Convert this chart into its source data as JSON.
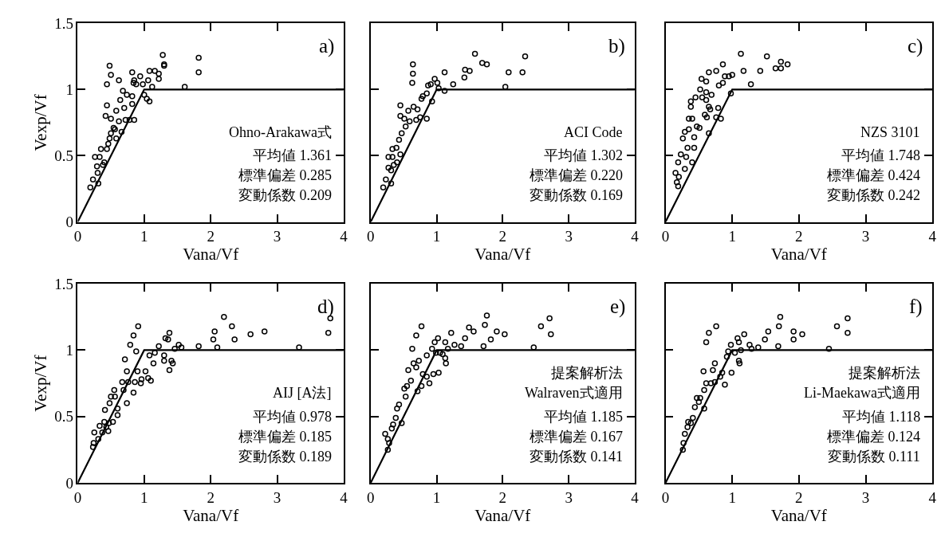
{
  "chart_data": [
    {
      "type": "scatter",
      "xlabel": "Vana/Vf",
      "ylabel": "Vexp/Vf",
      "xlim": [
        0,
        4
      ],
      "ylim": [
        0,
        1.5
      ],
      "xticks": [
        0,
        1,
        2,
        3,
        4
      ],
      "yticks": [
        0,
        0.5,
        1,
        1.5
      ],
      "annotations": [
        "a)",
        "Ohno-Arakawa式",
        "平均値 1.361",
        "標準偏差 0.285",
        "変動係数 0.209"
      ],
      "series": [
        {
          "type": "scatter",
          "color": "#000000",
          "marker": "circle",
          "x": [
            0.19,
            0.23,
            0.26,
            0.33,
            0.29,
            0.3,
            0.31,
            0.38,
            0.4,
            0.35,
            0.44,
            0.46,
            0.48,
            0.5,
            0.44,
            0.42,
            0.44,
            0.48,
            0.5,
            0.5,
            0.54,
            0.56,
            0.62,
            0.58,
            0.62,
            0.64,
            0.58,
            0.66,
            0.68,
            0.7,
            0.72,
            0.74,
            0.78,
            0.82,
            0.84,
            0.82,
            0.82,
            0.85,
            0.85,
            0.88,
            0.94,
            0.98,
            1.0,
            1.04,
            1.06,
            1.08,
            1.08,
            1.12,
            1.16,
            1.22,
            1.22,
            1.28,
            1.3,
            1.3,
            1.61,
            1.82,
            1.82
          ],
          "values": [
            0.26,
            0.32,
            0.49,
            0.49,
            0.42,
            0.37,
            0.29,
            0.43,
            0.45,
            0.55,
            0.55,
            0.59,
            0.63,
            0.67,
            0.88,
            0.8,
            1.04,
            1.18,
            1.11,
            0.78,
            0.71,
            0.7,
            1.07,
            0.84,
            0.76,
            0.92,
            0.63,
            0.68,
            0.99,
            0.86,
            0.77,
            0.96,
            0.77,
            1.13,
            1.05,
            0.95,
            0.89,
            0.77,
            1.07,
            1.04,
            1.1,
            1.04,
            0.96,
            0.93,
            1.07,
            0.91,
            1.14,
            1.02,
            1.14,
            1.12,
            1.08,
            1.26,
            1.19,
            1.18,
            1.02,
            1.24,
            1.13
          ]
        },
        {
          "type": "line",
          "color": "#000000",
          "line_style": "solid",
          "x": [
            0,
            1,
            4
          ],
          "values": [
            0,
            1,
            1
          ]
        }
      ]
    },
    {
      "type": "scatter",
      "xlabel": "Vana/Vf",
      "xlim": [
        0,
        4
      ],
      "ylim": [
        0,
        1.5
      ],
      "xticks": [
        0,
        1,
        2,
        3,
        4
      ],
      "yticks": [
        0,
        0.5,
        1,
        1.5
      ],
      "tick_labels": "x",
      "annotations": [
        "b)",
        "ACI Code",
        "平均値 1.302",
        "標準偏差 0.220",
        "変動係数 0.169"
      ],
      "series": [
        {
          "type": "scatter",
          "color": "#000000",
          "marker": "circle",
          "x": [
            0.19,
            0.23,
            0.31,
            0.27,
            0.33,
            0.27,
            0.31,
            0.35,
            0.4,
            0.33,
            0.39,
            0.45,
            0.43,
            0.47,
            0.45,
            0.51,
            0.45,
            0.53,
            0.57,
            0.59,
            0.63,
            0.64,
            0.64,
            0.65,
            0.71,
            0.69,
            0.75,
            0.77,
            0.79,
            0.85,
            0.85,
            0.87,
            0.91,
            0.93,
            0.97,
            1.01,
            1.03,
            1.12,
            1.12,
            1.25,
            1.42,
            1.43,
            1.5,
            1.58,
            1.69,
            1.76,
            2.04,
            2.09,
            2.3,
            2.34
          ],
          "values": [
            0.26,
            0.32,
            0.29,
            0.49,
            0.49,
            0.41,
            0.39,
            0.43,
            0.45,
            0.55,
            0.56,
            0.51,
            0.62,
            0.67,
            0.8,
            0.78,
            0.88,
            0.72,
            0.84,
            0.76,
            1.05,
            1.12,
            1.19,
            0.87,
            0.85,
            0.77,
            0.79,
            0.93,
            0.95,
            0.97,
            0.78,
            1.03,
            1.04,
            0.91,
            1.08,
            1.05,
            1.01,
            0.99,
            1.13,
            1.04,
            1.09,
            1.15,
            1.14,
            1.27,
            1.2,
            1.19,
            1.02,
            1.13,
            1.13,
            1.25
          ]
        },
        {
          "type": "line",
          "color": "#000000",
          "line_style": "solid",
          "x": [
            0,
            1,
            4
          ],
          "values": [
            0,
            1,
            1
          ]
        }
      ]
    },
    {
      "type": "scatter",
      "xlabel": "Vana/Vf",
      "xlim": [
        0,
        4
      ],
      "ylim": [
        0,
        1.5
      ],
      "xticks": [
        0,
        1,
        2,
        3,
        4
      ],
      "yticks": [
        0,
        0.5,
        1,
        1.5
      ],
      "tick_labels": "x",
      "annotations": [
        "c)",
        "NZS 3101",
        "平均値 1.748",
        "標準偏差 0.424",
        "変動係数 0.242"
      ],
      "series": [
        {
          "type": "scatter",
          "color": "#000000",
          "marker": "circle",
          "x": [
            0.19,
            0.17,
            0.2,
            0.15,
            0.19,
            0.23,
            0.29,
            0.31,
            0.33,
            0.4,
            0.26,
            0.29,
            0.35,
            0.43,
            0.43,
            0.47,
            0.51,
            0.35,
            0.4,
            0.38,
            0.38,
            0.45,
            0.52,
            0.54,
            0.61,
            0.61,
            0.55,
            0.61,
            0.65,
            0.65,
            0.67,
            0.59,
            0.62,
            0.65,
            0.69,
            0.76,
            0.76,
            0.79,
            0.83,
            0.8,
            0.86,
            0.86,
            0.89,
            0.95,
            1.0,
            0.98,
            1.13,
            1.17,
            1.28,
            1.42,
            1.52,
            1.65,
            1.73,
            1.73,
            1.83
          ],
          "values": [
            0.27,
            0.3,
            0.34,
            0.37,
            0.45,
            0.51,
            0.4,
            0.49,
            0.56,
            0.45,
            0.63,
            0.68,
            0.7,
            0.56,
            0.64,
            0.72,
            0.71,
            0.78,
            0.78,
            0.87,
            0.91,
            0.94,
            1.0,
            1.08,
            1.06,
            0.98,
            0.94,
            0.92,
            1.13,
            0.87,
            0.85,
            0.81,
            0.79,
            0.67,
            0.96,
            1.14,
            0.79,
            0.86,
            0.78,
            1.03,
            1.05,
            1.19,
            1.1,
            1.1,
            1.11,
            0.97,
            1.27,
            1.14,
            1.04,
            1.14,
            1.25,
            1.16,
            1.16,
            1.21,
            1.19
          ]
        },
        {
          "type": "line",
          "color": "#000000",
          "line_style": "solid",
          "x": [
            0,
            1,
            4
          ],
          "values": [
            0,
            1,
            1
          ]
        }
      ]
    },
    {
      "type": "scatter",
      "xlabel": "Vana/Vf",
      "ylabel": "Vexp/Vf",
      "xlim": [
        0,
        4
      ],
      "ylim": [
        0,
        1.5
      ],
      "xticks": [
        0,
        1,
        2,
        3,
        4
      ],
      "yticks": [
        0,
        0.5,
        1,
        1.5
      ],
      "annotations": [
        "d)",
        "AIJ [A法]",
        "平均値 0.978",
        "標準偏差 0.185",
        "変動係数 0.189"
      ],
      "series": [
        {
          "type": "scatter",
          "color": "#000000",
          "marker": "circle",
          "x": [
            0.23,
            0.24,
            0.25,
            0.31,
            0.33,
            0.37,
            0.4,
            0.41,
            0.43,
            0.47,
            0.46,
            0.48,
            0.5,
            0.55,
            0.53,
            0.56,
            0.6,
            0.6,
            0.67,
            0.69,
            0.71,
            0.74,
            0.74,
            0.76,
            0.79,
            0.84,
            0.84,
            0.86,
            0.88,
            0.9,
            0.91,
            0.95,
            0.96,
            1.02,
            1.06,
            1.1,
            1.08,
            1.14,
            1.16,
            1.22,
            1.3,
            1.3,
            1.32,
            1.36,
            1.38,
            1.38,
            1.41,
            1.43,
            1.46,
            1.52,
            1.56,
            1.82,
            2.04,
            2.06,
            2.1,
            2.2,
            2.32,
            2.36,
            2.6,
            2.81,
            3.33,
            3.77,
            3.8
          ],
          "values": [
            0.27,
            0.3,
            0.38,
            0.33,
            0.43,
            0.38,
            0.46,
            0.55,
            0.42,
            0.45,
            0.39,
            0.6,
            0.65,
            0.7,
            0.46,
            0.65,
            0.56,
            0.51,
            0.76,
            0.7,
            0.93,
            0.6,
            0.84,
            0.76,
            1.04,
            1.11,
            0.68,
            0.76,
            0.99,
            0.84,
            1.18,
            0.75,
            0.78,
            0.84,
            0.79,
            0.77,
            0.96,
            0.9,
            0.98,
            1.03,
            0.96,
            0.92,
            1.09,
            1.08,
            1.13,
            0.85,
            0.92,
            0.9,
            1.01,
            1.04,
            1.02,
            1.03,
            1.08,
            1.14,
            1.02,
            1.25,
            1.18,
            1.08,
            1.12,
            1.14,
            1.02,
            1.13,
            1.24
          ]
        },
        {
          "type": "line",
          "color": "#000000",
          "line_style": "solid",
          "x": [
            0,
            1,
            4
          ],
          "values": [
            0,
            1,
            1
          ]
        }
      ]
    },
    {
      "type": "scatter",
      "xlabel": "Vana/Vf",
      "xlim": [
        0,
        4
      ],
      "ylim": [
        0,
        1.5
      ],
      "xticks": [
        0,
        1,
        2,
        3,
        4
      ],
      "yticks": [
        0,
        0.5,
        1,
        1.5
      ],
      "tick_labels": "x",
      "annotations": [
        "e)",
        "提案解析法",
        "Walraven式適用",
        "平均値 1.185",
        "標準偏差 0.167",
        "変動係数 0.141"
      ],
      "series": [
        {
          "type": "scatter",
          "color": "#000000",
          "marker": "circle",
          "x": [
            0.22,
            0.26,
            0.28,
            0.26,
            0.32,
            0.34,
            0.38,
            0.4,
            0.43,
            0.47,
            0.51,
            0.53,
            0.55,
            0.57,
            0.63,
            0.61,
            0.65,
            0.69,
            0.69,
            0.73,
            0.71,
            0.77,
            0.77,
            0.79,
            0.85,
            0.85,
            0.89,
            0.93,
            0.97,
            0.95,
            0.99,
            1.02,
            1.03,
            1.05,
            1.09,
            1.13,
            1.14,
            1.13,
            1.17,
            1.22,
            1.27,
            1.37,
            1.43,
            1.49,
            1.56,
            1.71,
            1.73,
            1.76,
            1.82,
            1.91,
            2.03,
            2.47,
            2.58,
            2.71,
            2.73
          ],
          "values": [
            0.37,
            0.33,
            0.3,
            0.25,
            0.41,
            0.44,
            0.49,
            0.56,
            0.59,
            0.45,
            0.71,
            0.65,
            0.73,
            0.85,
            1.01,
            0.77,
            0.9,
            1.11,
            0.87,
            0.92,
            0.69,
            1.18,
            0.73,
            0.82,
            0.96,
            0.8,
            0.75,
            1.01,
            1.06,
            0.82,
            0.98,
            1.09,
            0.83,
            0.98,
            0.97,
            0.94,
            0.9,
            1.06,
            1.01,
            1.13,
            1.04,
            1.03,
            1.09,
            1.17,
            1.14,
            1.03,
            1.19,
            1.26,
            1.08,
            1.14,
            1.12,
            1.02,
            1.18,
            1.24,
            1.12
          ]
        },
        {
          "type": "line",
          "color": "#000000",
          "line_style": "solid",
          "x": [
            0,
            1,
            4
          ],
          "values": [
            0,
            1,
            1
          ]
        }
      ]
    },
    {
      "type": "scatter",
      "xlabel": "Vana/Vf",
      "xlim": [
        0,
        4
      ],
      "ylim": [
        0,
        1.5
      ],
      "xticks": [
        0,
        1,
        2,
        3,
        4
      ],
      "yticks": [
        0,
        0.5,
        1,
        1.5
      ],
      "tick_labels": "x",
      "annotations": [
        "f)",
        "提案解析法",
        "Li-Maekawa式適用",
        "平均値 1.118",
        "標準偏差 0.124",
        "変動係数 0.111"
      ],
      "series": [
        {
          "type": "scatter",
          "color": "#000000",
          "marker": "circle",
          "x": [
            0.26,
            0.27,
            0.29,
            0.33,
            0.34,
            0.38,
            0.41,
            0.44,
            0.47,
            0.5,
            0.52,
            0.58,
            0.61,
            0.58,
            0.57,
            0.61,
            0.65,
            0.68,
            0.71,
            0.74,
            0.76,
            0.74,
            0.82,
            0.85,
            0.89,
            0.92,
            0.94,
            0.98,
            0.99,
            1.04,
            1.08,
            1.1,
            1.1,
            1.11,
            1.13,
            1.18,
            1.26,
            1.29,
            1.39,
            1.49,
            1.54,
            1.69,
            1.7,
            1.72,
            1.92,
            1.92,
            2.05,
            2.45,
            2.57,
            2.73,
            2.73
          ],
          "values": [
            0.25,
            0.3,
            0.37,
            0.42,
            0.46,
            0.45,
            0.49,
            0.57,
            0.64,
            0.61,
            0.64,
            0.7,
            0.75,
            0.56,
            0.84,
            1.06,
            1.13,
            0.75,
            0.85,
            0.9,
            1.18,
            0.76,
            0.8,
            0.83,
            0.74,
            0.95,
            0.99,
            1.04,
            0.83,
            0.98,
            1.09,
            1.06,
            0.92,
            0.9,
            1.0,
            1.12,
            1.04,
            1.01,
            1.02,
            1.08,
            1.14,
            1.03,
            1.18,
            1.25,
            1.14,
            1.08,
            1.12,
            1.01,
            1.18,
            1.24,
            1.13
          ]
        },
        {
          "type": "line",
          "color": "#000000",
          "line_style": "solid",
          "x": [
            0,
            1,
            4
          ],
          "values": [
            0,
            1,
            1
          ]
        }
      ]
    }
  ]
}
